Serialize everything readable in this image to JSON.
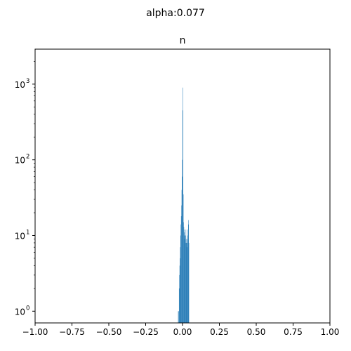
{
  "chart_data": {
    "type": "bar",
    "suptitle": "alpha:0.077",
    "title": "n",
    "xlabel": "",
    "ylabel": "",
    "xlim": [
      -1.0,
      1.0
    ],
    "yscale": "log",
    "ylim": [
      0.7,
      2900
    ],
    "xticks": [
      -1.0,
      -0.75,
      -0.5,
      -0.25,
      0.0,
      0.25,
      0.5,
      0.75,
      1.0
    ],
    "xtick_labels": [
      "−1.00",
      "−0.75",
      "−0.50",
      "−0.25",
      "0.00",
      "0.25",
      "0.50",
      "0.75",
      "1.00"
    ],
    "yticks": [
      1,
      10,
      100,
      1000
    ],
    "ytick_labels": [
      "10",
      "10",
      "10",
      "10"
    ],
    "ytick_exponents": [
      "0",
      "1",
      "2",
      "3"
    ],
    "grid": false,
    "bar_color": "#1f77b4",
    "bin_width": 0.002,
    "bins_left": [
      -0.03,
      -0.026,
      -0.024,
      -0.022,
      -0.02,
      -0.018,
      -0.016,
      -0.014,
      -0.012,
      -0.01,
      -0.008,
      -0.006,
      -0.004,
      -0.002,
      0.0,
      0.002,
      0.004,
      0.006,
      0.008,
      0.01,
      0.012,
      0.014,
      0.016,
      0.018,
      0.02,
      0.022,
      0.024,
      0.026,
      0.028,
      0.03,
      0.032,
      0.034,
      0.036,
      0.038,
      0.04,
      0.042
    ],
    "values": [
      1,
      1,
      2,
      3,
      4,
      5,
      7,
      10,
      14,
      18,
      25,
      40,
      60,
      100,
      900,
      450,
      35,
      15,
      13,
      12,
      11,
      10,
      9,
      10,
      8,
      12,
      9,
      8,
      7,
      8,
      9,
      10,
      12,
      14,
      16,
      8
    ]
  }
}
